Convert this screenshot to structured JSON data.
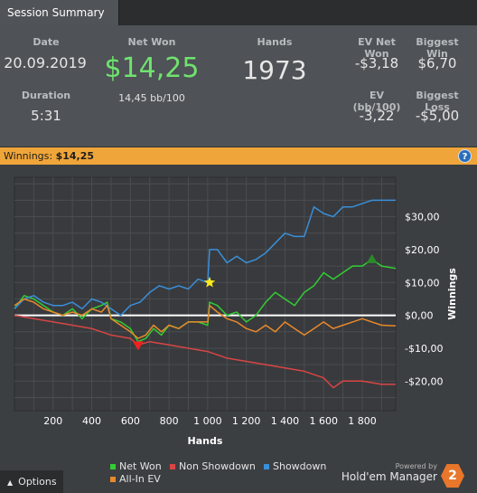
{
  "tab": {
    "label": "Session Summary"
  },
  "summary": {
    "date_label": "Date",
    "date": "20.09.2019",
    "duration_label": "Duration",
    "duration": "5:31",
    "net_won_label": "Net Won",
    "net_won": "$14,25",
    "bb100": "14,45 bb/100",
    "hands_label": "Hands",
    "hands": "1973",
    "ev_net_won_label": "EV Net Won",
    "ev_net_won": "-$3,18",
    "biggest_win_label": "Biggest Win",
    "biggest_win": "$6,70",
    "ev_bb_label": "EV (bb/100)",
    "ev_bb": "-3,22",
    "biggest_loss_label": "Biggest Loss",
    "biggest_loss": "-$5,00"
  },
  "winbar": {
    "label": "Winnings:",
    "value": "$14,25",
    "help": "?"
  },
  "chart_data": {
    "type": "line",
    "xlabel": "Hands",
    "ylabel": "Winnings",
    "xlim": [
      0,
      1973
    ],
    "ylim": [
      -29,
      42
    ],
    "x_ticks": [
      200,
      400,
      600,
      800,
      1000,
      1200,
      1400,
      1600,
      1800
    ],
    "x_tick_labels": [
      "200",
      "400",
      "600",
      "800",
      "1 000",
      "1 200",
      "1 400",
      "1 600",
      "1 800"
    ],
    "y_ticks": [
      -20,
      -10,
      0,
      10,
      20,
      30
    ],
    "y_tick_labels": [
      "-$20,00",
      "-$10,00",
      "$0,00",
      "$10,00",
      "$20,00",
      "$30,00"
    ],
    "grid": true,
    "series": [
      {
        "name": "Net Won",
        "color": "#33cc33",
        "points": [
          [
            0,
            2
          ],
          [
            50,
            6
          ],
          [
            100,
            5
          ],
          [
            150,
            3
          ],
          [
            200,
            1
          ],
          [
            250,
            0
          ],
          [
            300,
            2
          ],
          [
            350,
            -1
          ],
          [
            400,
            2
          ],
          [
            450,
            3
          ],
          [
            480,
            4
          ],
          [
            500,
            -1
          ],
          [
            550,
            -2
          ],
          [
            600,
            -4
          ],
          [
            640,
            -8
          ],
          [
            680,
            -7
          ],
          [
            720,
            -4
          ],
          [
            760,
            -6
          ],
          [
            800,
            -3
          ],
          [
            850,
            -4
          ],
          [
            900,
            -2
          ],
          [
            950,
            -2
          ],
          [
            1000,
            -3
          ],
          [
            1010,
            4
          ],
          [
            1050,
            3
          ],
          [
            1100,
            0
          ],
          [
            1150,
            1
          ],
          [
            1200,
            -2
          ],
          [
            1250,
            0
          ],
          [
            1300,
            4
          ],
          [
            1350,
            7
          ],
          [
            1400,
            5
          ],
          [
            1450,
            3
          ],
          [
            1500,
            7
          ],
          [
            1550,
            9
          ],
          [
            1600,
            13
          ],
          [
            1650,
            11
          ],
          [
            1700,
            13
          ],
          [
            1750,
            15
          ],
          [
            1800,
            15
          ],
          [
            1850,
            17
          ],
          [
            1900,
            15
          ],
          [
            1973,
            14.25
          ]
        ]
      },
      {
        "name": "Non Showdown",
        "color": "#d94545",
        "points": [
          [
            0,
            0
          ],
          [
            100,
            -1
          ],
          [
            200,
            -2
          ],
          [
            300,
            -3
          ],
          [
            400,
            -4
          ],
          [
            500,
            -6
          ],
          [
            600,
            -7
          ],
          [
            640,
            -9
          ],
          [
            700,
            -8
          ],
          [
            800,
            -9
          ],
          [
            900,
            -10
          ],
          [
            1000,
            -11
          ],
          [
            1100,
            -13
          ],
          [
            1200,
            -14
          ],
          [
            1300,
            -15
          ],
          [
            1400,
            -16
          ],
          [
            1500,
            -17
          ],
          [
            1600,
            -19
          ],
          [
            1650,
            -22
          ],
          [
            1700,
            -20
          ],
          [
            1800,
            -20
          ],
          [
            1900,
            -21
          ],
          [
            1973,
            -21
          ]
        ]
      },
      {
        "name": "Showdown",
        "color": "#3a8fd9",
        "points": [
          [
            0,
            2
          ],
          [
            50,
            5
          ],
          [
            100,
            6
          ],
          [
            150,
            4
          ],
          [
            200,
            3
          ],
          [
            250,
            3
          ],
          [
            300,
            4
          ],
          [
            350,
            2
          ],
          [
            400,
            5
          ],
          [
            450,
            4
          ],
          [
            500,
            2
          ],
          [
            550,
            0
          ],
          [
            600,
            3
          ],
          [
            650,
            4
          ],
          [
            700,
            7
          ],
          [
            750,
            9
          ],
          [
            800,
            8
          ],
          [
            850,
            9
          ],
          [
            900,
            8
          ],
          [
            950,
            11
          ],
          [
            1000,
            10
          ],
          [
            1010,
            20
          ],
          [
            1050,
            20
          ],
          [
            1100,
            16
          ],
          [
            1150,
            18
          ],
          [
            1200,
            16
          ],
          [
            1250,
            17
          ],
          [
            1300,
            19
          ],
          [
            1350,
            22
          ],
          [
            1400,
            25
          ],
          [
            1450,
            24
          ],
          [
            1500,
            24
          ],
          [
            1550,
            33
          ],
          [
            1600,
            31
          ],
          [
            1650,
            30
          ],
          [
            1700,
            33
          ],
          [
            1750,
            33
          ],
          [
            1800,
            34
          ],
          [
            1850,
            35
          ],
          [
            1973,
            35
          ]
        ]
      },
      {
        "name": "All-In EV",
        "color": "#e8892b",
        "points": [
          [
            0,
            3
          ],
          [
            50,
            5
          ],
          [
            100,
            4
          ],
          [
            150,
            2
          ],
          [
            200,
            1
          ],
          [
            250,
            0
          ],
          [
            300,
            1
          ],
          [
            350,
            0
          ],
          [
            400,
            2
          ],
          [
            450,
            1
          ],
          [
            480,
            3
          ],
          [
            500,
            -1
          ],
          [
            550,
            -3
          ],
          [
            600,
            -5
          ],
          [
            640,
            -7
          ],
          [
            680,
            -6
          ],
          [
            720,
            -3
          ],
          [
            760,
            -5
          ],
          [
            800,
            -3
          ],
          [
            850,
            -4
          ],
          [
            900,
            -2
          ],
          [
            950,
            -2
          ],
          [
            1000,
            -2
          ],
          [
            1010,
            3
          ],
          [
            1050,
            1
          ],
          [
            1100,
            -1
          ],
          [
            1150,
            -2
          ],
          [
            1200,
            -4
          ],
          [
            1250,
            -5
          ],
          [
            1300,
            -3
          ],
          [
            1350,
            -5
          ],
          [
            1400,
            -2
          ],
          [
            1450,
            -4
          ],
          [
            1500,
            -6
          ],
          [
            1550,
            -4
          ],
          [
            1600,
            -2
          ],
          [
            1650,
            -4
          ],
          [
            1700,
            -3
          ],
          [
            1750,
            -2
          ],
          [
            1800,
            -1
          ],
          [
            1850,
            -2
          ],
          [
            1900,
            -3
          ],
          [
            1973,
            -3.18
          ]
        ]
      }
    ],
    "markers": [
      {
        "type": "star",
        "color": "#ffe91a",
        "x": 1010,
        "y": 10
      },
      {
        "type": "down-triangle",
        "color": "#ee2222",
        "x": 640,
        "y": -9
      },
      {
        "type": "up-triangle",
        "color": "#2a8a2a",
        "x": 1850,
        "y": 17
      }
    ],
    "legend": [
      "Net Won",
      "Non Showdown",
      "Showdown",
      "All-In EV"
    ],
    "legend_position": "bottom"
  },
  "footer": {
    "options": "Options",
    "powered_by": "Powered by",
    "brand": "Hold'em Manager",
    "badge": "2"
  }
}
